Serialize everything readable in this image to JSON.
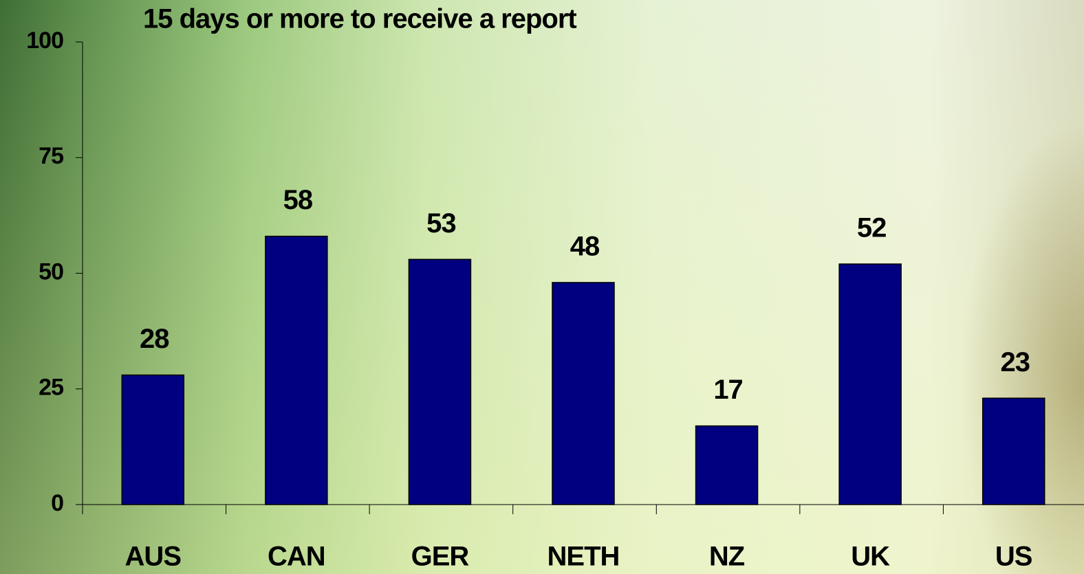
{
  "chart_data": {
    "type": "bar",
    "title": "15 days or more to receive a report",
    "categories": [
      "AUS",
      "CAN",
      "GER",
      "NETH",
      "NZ",
      "UK",
      "US"
    ],
    "values": [
      28,
      58,
      53,
      48,
      17,
      52,
      23
    ],
    "color": "#000080",
    "ylim": [
      0,
      100
    ],
    "yticks": [
      0,
      25,
      50,
      75,
      100
    ],
    "grid": false
  }
}
